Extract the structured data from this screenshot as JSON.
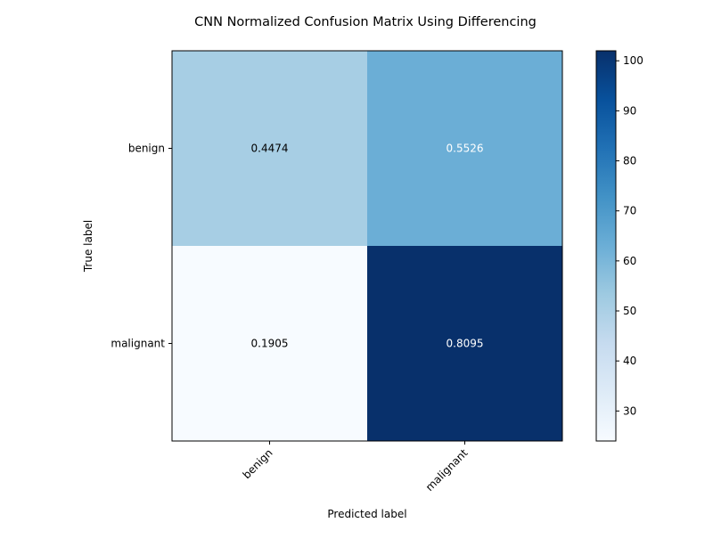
{
  "chart_data": {
    "type": "heatmap",
    "title": "CNN Normalized Confusion Matrix Using Differencing",
    "xlabel": "Predicted label",
    "ylabel": "True label",
    "x_categories": [
      "benign",
      "malignant"
    ],
    "y_categories": [
      "benign",
      "malignant"
    ],
    "cell_labels": [
      [
        "0.4474",
        "0.5526"
      ],
      [
        "0.1905",
        "0.8095"
      ]
    ],
    "cell_values": [
      [
        51,
        63
      ],
      [
        24,
        102
      ]
    ],
    "colorbar": {
      "min": 24,
      "max": 102,
      "ticks": [
        30,
        40,
        50,
        60,
        70,
        80,
        90,
        100
      ],
      "tick_labels": [
        "30",
        "40",
        "50",
        "60",
        "70",
        "80",
        "90",
        "100"
      ],
      "colormap": "Blues"
    },
    "grid": false
  }
}
